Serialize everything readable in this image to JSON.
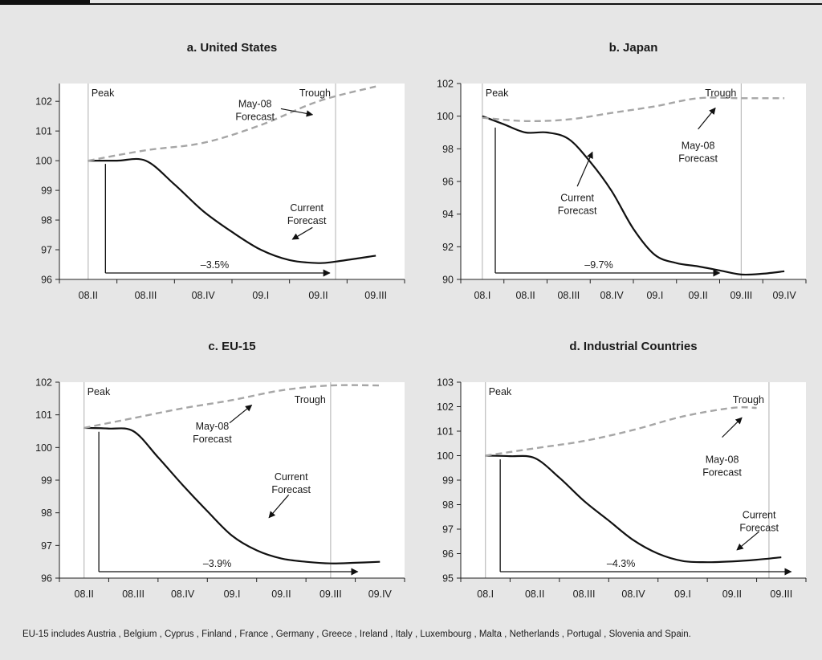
{
  "colors": {
    "background": "#e6e6e6",
    "plot_bg": "#ffffff",
    "current": "#111111",
    "forecast": "#a6a6a6",
    "vline": "#bdbdbd"
  },
  "footnote": "EU-15 includes Austria , Belgium , Cyprus , Finland , France , Germany , Greece , Ireland , Italy , Luxembourg , Malta , Netherlands , Portugal , Slovenia and Spain.",
  "chart_data": [
    {
      "type": "line",
      "title": "a. United States",
      "categories": [
        "08.II",
        "08.III",
        "08.IV",
        "09.I",
        "09.II",
        "09.III"
      ],
      "ylim": [
        96,
        102.6
      ],
      "yticks": [
        96,
        97,
        98,
        99,
        100,
        101,
        102
      ],
      "series": [
        {
          "name": "Current Forecast",
          "style": "solid",
          "x": [
            0,
            0.5,
            1,
            1.5,
            2,
            2.5,
            3,
            3.5,
            4,
            4.3,
            5
          ],
          "y": [
            100.0,
            100.0,
            100.0,
            99.2,
            98.3,
            97.6,
            97.0,
            96.65,
            96.55,
            96.6,
            96.8
          ]
        },
        {
          "name": "May-08 Forecast",
          "style": "dashed",
          "x": [
            0,
            1,
            2,
            3,
            4,
            5
          ],
          "y": [
            100.0,
            100.35,
            100.6,
            101.2,
            102.0,
            102.5
          ]
        }
      ],
      "peak_x": 0,
      "trough_x": 4.3,
      "labels": {
        "peak": "Peak",
        "trough": "Trough",
        "current": [
          "Current",
          "Forecast"
        ],
        "may": [
          "May-08",
          "Forecast"
        ],
        "change": "–3.5%"
      }
    },
    {
      "type": "line",
      "title": "b. Japan",
      "categories": [
        "08.I",
        "08.II",
        "08.III",
        "08.IV",
        "09.I",
        "09.II",
        "09.III",
        "09.IV"
      ],
      "ylim": [
        90,
        102
      ],
      "yticks": [
        90,
        92,
        94,
        96,
        98,
        100,
        102
      ],
      "series": [
        {
          "name": "Current Forecast",
          "style": "solid",
          "x": [
            0,
            0.5,
            1,
            1.5,
            2,
            2.5,
            3,
            3.5,
            4,
            4.5,
            5,
            5.5,
            6,
            6.5,
            7
          ],
          "y": [
            100.0,
            99.5,
            99.0,
            99.0,
            98.6,
            97.2,
            95.4,
            93.1,
            91.5,
            91.0,
            90.8,
            90.55,
            90.3,
            90.35,
            90.5
          ]
        },
        {
          "name": "May-08 Forecast",
          "style": "dashed",
          "x": [
            0,
            1,
            2,
            3,
            4,
            5,
            6,
            7
          ],
          "y": [
            99.9,
            99.7,
            99.8,
            100.2,
            100.6,
            101.1,
            101.1,
            101.1
          ]
        }
      ],
      "peak_x": 0,
      "trough_x": 6,
      "labels": {
        "peak": "Peak",
        "trough": "Trough",
        "current": [
          "Current",
          "Forecast"
        ],
        "may": [
          "May-08",
          "Forecast"
        ],
        "change": "–9.7%"
      }
    },
    {
      "type": "line",
      "title": "c. EU-15",
      "categories": [
        "08.II",
        "08.III",
        "08.IV",
        "09.I",
        "09.II",
        "09.III",
        "09.IV"
      ],
      "ylim": [
        96,
        102
      ],
      "yticks": [
        96,
        97,
        98,
        99,
        100,
        101,
        102
      ],
      "series": [
        {
          "name": "Current Forecast",
          "style": "solid",
          "x": [
            0,
            0.5,
            1,
            1.5,
            2,
            2.5,
            3,
            3.5,
            4,
            4.5,
            5,
            5.5,
            6
          ],
          "y": [
            100.6,
            100.58,
            100.5,
            99.7,
            98.85,
            98.05,
            97.3,
            96.85,
            96.6,
            96.5,
            96.45,
            96.47,
            96.5
          ]
        },
        {
          "name": "May-08 Forecast",
          "style": "dashed",
          "x": [
            0,
            1,
            2,
            3,
            4,
            5,
            6
          ],
          "y": [
            100.6,
            100.9,
            101.2,
            101.45,
            101.75,
            101.9,
            101.9
          ]
        }
      ],
      "peak_x": 0,
      "trough_x": 5,
      "labels": {
        "peak": "Peak",
        "trough": "Trough",
        "current": [
          "Current",
          "Forecast"
        ],
        "may": [
          "May-08",
          "Forecast"
        ],
        "change": "–3.9%"
      }
    },
    {
      "type": "line",
      "title": "d. Industrial Countries",
      "categories": [
        "08.I",
        "08.II",
        "08.III",
        "08.IV",
        "09.I",
        "09.II",
        "09.III"
      ],
      "ylim": [
        95,
        103
      ],
      "yticks": [
        95,
        96,
        97,
        98,
        99,
        100,
        101,
        102,
        103
      ],
      "series": [
        {
          "name": "Current Forecast",
          "style": "solid",
          "x": [
            0,
            0.5,
            1,
            1.5,
            2,
            2.5,
            3,
            3.5,
            4,
            4.5,
            5,
            5.5,
            6
          ],
          "y": [
            100.0,
            99.98,
            99.9,
            99.1,
            98.15,
            97.35,
            96.55,
            96.0,
            95.7,
            95.65,
            95.68,
            95.75,
            95.85
          ]
        },
        {
          "name": "May-08 Forecast",
          "style": "dashed",
          "x": [
            0,
            1,
            2,
            3,
            4,
            5,
            5.5
          ],
          "y": [
            100.0,
            100.3,
            100.6,
            101.05,
            101.6,
            101.95,
            101.95
          ]
        }
      ],
      "peak_x": 0,
      "trough_x": 5.75,
      "labels": {
        "peak": "Peak",
        "trough": "Trough",
        "current": [
          "Current",
          "Forecast"
        ],
        "may": [
          "May-08",
          "Forecast"
        ],
        "change": "–4.3%"
      }
    }
  ]
}
